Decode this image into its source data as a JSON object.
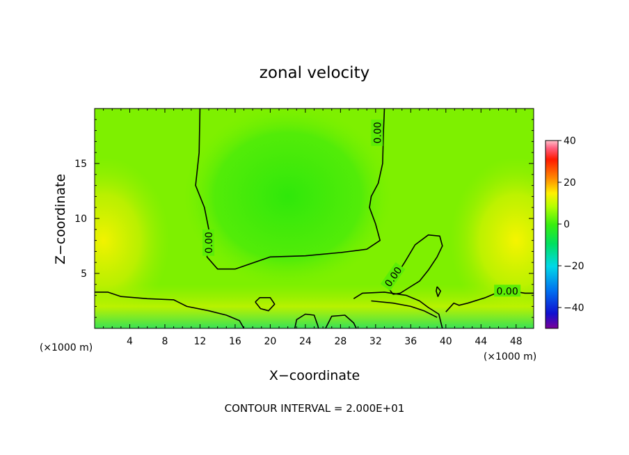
{
  "chart_data": {
    "type": "heatmap",
    "title": "zonal velocity",
    "xlabel": "X−coordinate",
    "ylabel": "Z−coordinate",
    "x_unit_left": "(×1000 m)",
    "x_unit_right": "(×1000 m)",
    "footer": "CONTOUR INTERVAL = 2.000E+01",
    "xlim": [
      0,
      50
    ],
    "ylim": [
      0,
      20
    ],
    "x_ticks": [
      4,
      8,
      12,
      16,
      20,
      24,
      28,
      32,
      36,
      40,
      44,
      48
    ],
    "x_tick_labels": [
      "4",
      "8",
      "12",
      "16",
      "20",
      "24",
      "28",
      "32",
      "36",
      "40",
      "44",
      "48"
    ],
    "y_ticks": [
      5,
      10,
      15
    ],
    "y_tick_labels": [
      "5",
      "10",
      "15"
    ],
    "colorbar": {
      "range": [
        -50,
        40
      ],
      "ticks": [
        40,
        20,
        0,
        -20,
        -40
      ],
      "tick_labels": [
        "40",
        "20",
        "0",
        "−20",
        "−40"
      ]
    },
    "contour_label": "0.00",
    "contour_labels": [
      {
        "text": "0.00",
        "x": 32.2,
        "z": 17.8,
        "angle": -90
      },
      {
        "text": "0.00",
        "x": 13.0,
        "z": 7.8,
        "angle": -90
      },
      {
        "text": "0.00",
        "x": 34.0,
        "z": 4.7,
        "angle": -55
      },
      {
        "text": "0.00",
        "x": 47.0,
        "z": 3.4,
        "angle": 0
      }
    ],
    "grid": false,
    "legend": "none",
    "zero_contours": [
      [
        [
          12.0,
          20.0
        ],
        [
          11.9,
          16.0
        ],
        [
          11.5,
          13.0
        ],
        [
          12.5,
          11.0
        ],
        [
          13.0,
          9.0
        ],
        [
          12.8,
          6.5
        ],
        [
          14.0,
          5.4
        ],
        [
          16.0,
          5.4
        ],
        [
          20.0,
          6.5
        ],
        [
          24.0,
          6.6
        ],
        [
          28.0,
          6.9
        ],
        [
          31.0,
          7.2
        ],
        [
          32.5,
          8.0
        ],
        [
          32.0,
          9.5
        ],
        [
          31.3,
          11.0
        ],
        [
          31.5,
          12.0
        ],
        [
          32.3,
          13.2
        ],
        [
          32.8,
          15.0
        ],
        [
          32.9,
          18.0
        ],
        [
          33.0,
          20.0
        ]
      ],
      [
        [
          0.0,
          3.3
        ],
        [
          1.5,
          3.3
        ],
        [
          3.0,
          2.9
        ],
        [
          6.0,
          2.7
        ],
        [
          9.0,
          2.6
        ],
        [
          10.5,
          2.0
        ],
        [
          13.0,
          1.6
        ],
        [
          15.0,
          1.2
        ],
        [
          16.5,
          0.7
        ],
        [
          17.0,
          0.0
        ]
      ],
      [
        [
          18.3,
          2.4
        ],
        [
          18.8,
          2.8
        ],
        [
          20.0,
          2.8
        ],
        [
          20.5,
          2.2
        ],
        [
          19.8,
          1.6
        ],
        [
          18.9,
          1.8
        ],
        [
          18.3,
          2.4
        ]
      ],
      [
        [
          22.8,
          0.0
        ],
        [
          23.0,
          0.8
        ],
        [
          24.0,
          1.3
        ],
        [
          25.0,
          1.2
        ],
        [
          25.4,
          0.3
        ],
        [
          25.5,
          0.0
        ]
      ],
      [
        [
          26.3,
          0.0
        ],
        [
          27.0,
          1.1
        ],
        [
          28.5,
          1.2
        ],
        [
          29.5,
          0.5
        ],
        [
          29.8,
          0.0
        ]
      ],
      [
        [
          29.5,
          2.7
        ],
        [
          30.5,
          3.2
        ],
        [
          33.0,
          3.3
        ],
        [
          35.5,
          3.0
        ],
        [
          37.0,
          2.5
        ],
        [
          38.0,
          1.9
        ],
        [
          39.2,
          1.3
        ],
        [
          39.6,
          0.0
        ]
      ],
      [
        [
          31.5,
          2.5
        ],
        [
          34.0,
          2.3
        ],
        [
          36.0,
          2.0
        ],
        [
          37.5,
          1.6
        ],
        [
          39.0,
          1.0
        ]
      ],
      [
        [
          33.5,
          3.6
        ],
        [
          34.0,
          4.4
        ],
        [
          35.3,
          6.0
        ],
        [
          36.5,
          7.6
        ],
        [
          38.0,
          8.5
        ],
        [
          39.3,
          8.4
        ],
        [
          39.6,
          7.5
        ],
        [
          39.0,
          6.5
        ],
        [
          38.0,
          5.3
        ],
        [
          37.0,
          4.3
        ],
        [
          35.8,
          3.7
        ],
        [
          34.8,
          3.2
        ],
        [
          34.0,
          3.1
        ],
        [
          33.5,
          3.6
        ]
      ],
      [
        [
          39.0,
          3.8
        ],
        [
          39.4,
          3.4
        ],
        [
          39.1,
          2.9
        ],
        [
          38.9,
          3.4
        ],
        [
          39.0,
          3.8
        ]
      ],
      [
        [
          40.0,
          1.5
        ],
        [
          40.9,
          2.3
        ],
        [
          41.5,
          2.1
        ],
        [
          42.5,
          2.3
        ],
        [
          44.5,
          2.8
        ],
        [
          46.0,
          3.3
        ],
        [
          47.5,
          3.4
        ],
        [
          49.0,
          3.2
        ],
        [
          50.0,
          3.2
        ]
      ]
    ]
  }
}
